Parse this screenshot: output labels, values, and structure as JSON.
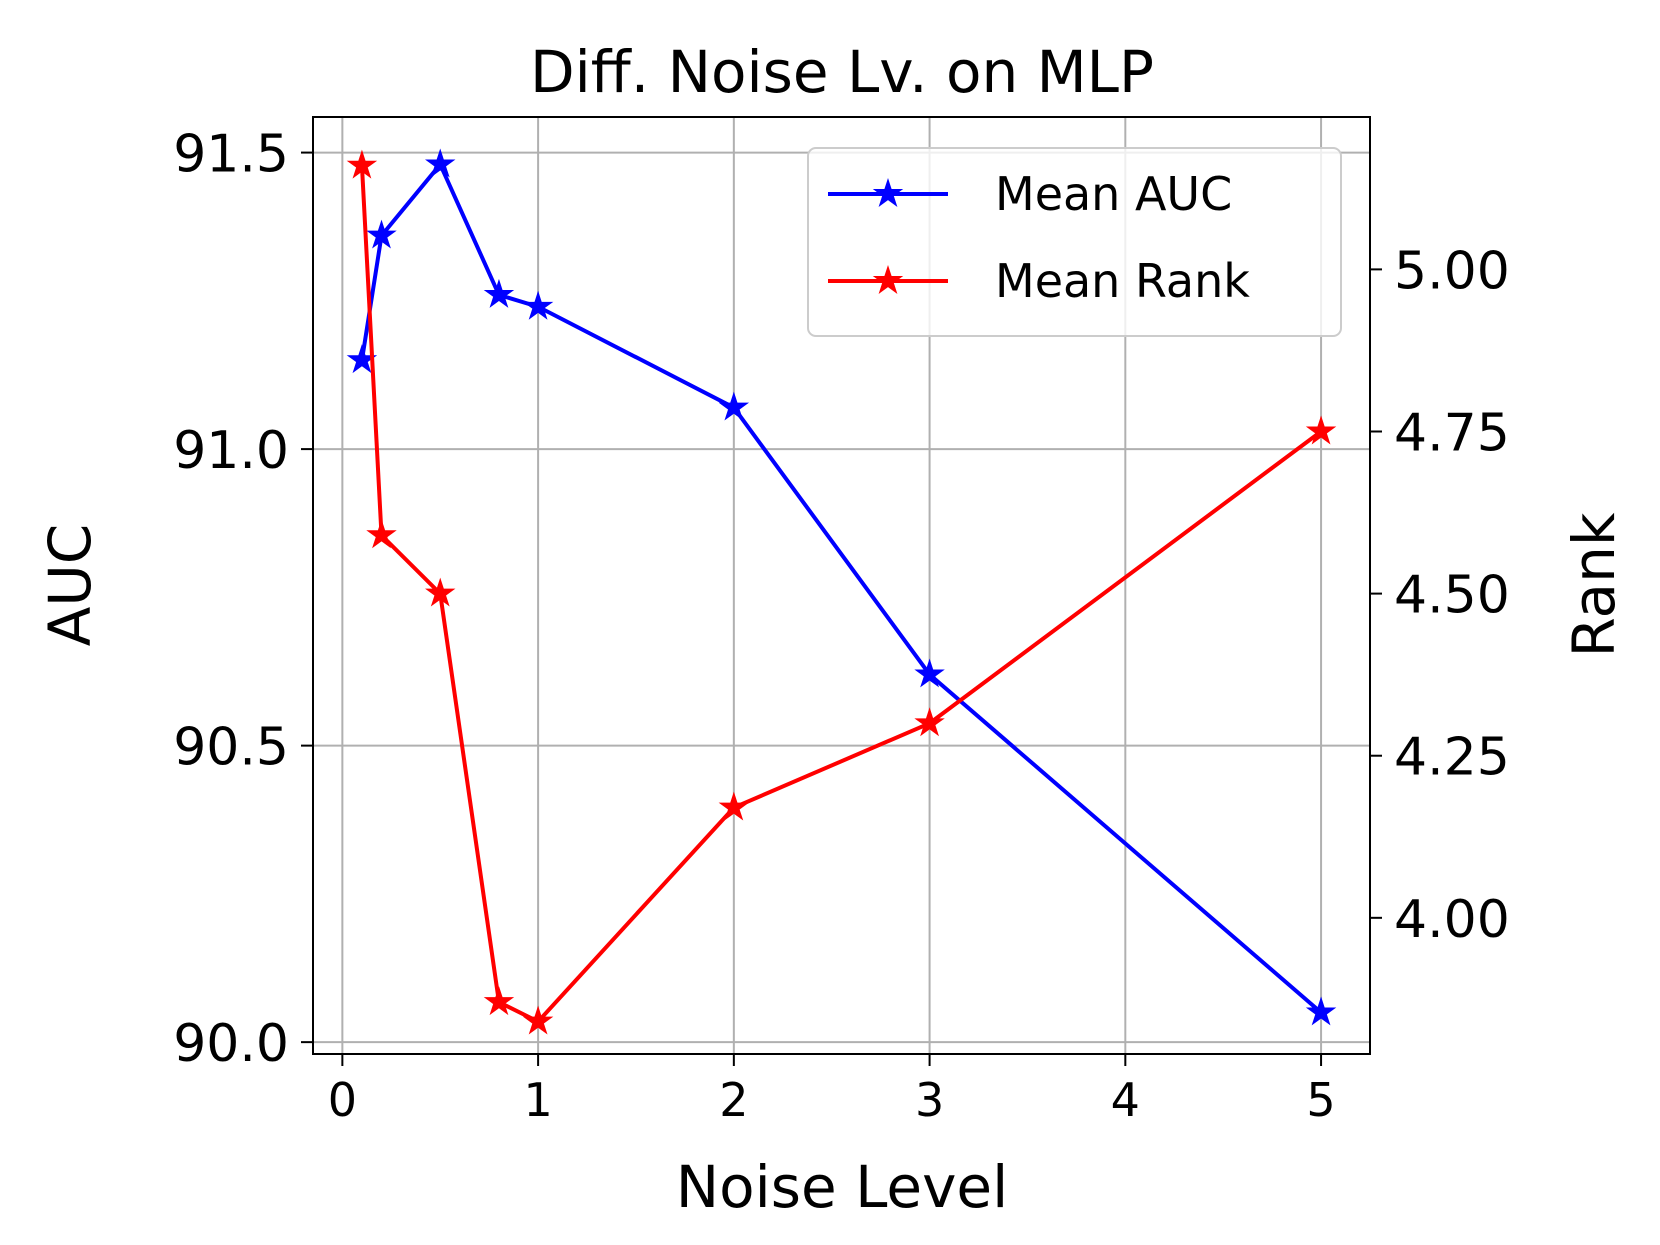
{
  "chart_data": {
    "type": "line",
    "title": "Diff. Noise Lv. on MLP",
    "xlabel": "Noise Level",
    "ylabel_left": "AUC",
    "ylabel_right": "Rank",
    "xlim": [
      -0.15,
      5.25
    ],
    "ylim_left": [
      89.98,
      91.56
    ],
    "ylim_right": [
      3.79,
      5.235
    ],
    "x_ticks": [
      0,
      1,
      2,
      3,
      4,
      5
    ],
    "x_tick_labels": [
      "0",
      "1",
      "2",
      "3",
      "4",
      "5"
    ],
    "y_left_ticks": [
      90.0,
      90.5,
      91.0,
      91.5
    ],
    "y_left_tick_labels": [
      "90.0",
      "90.5",
      "91.0",
      "91.5"
    ],
    "y_right_ticks": [
      4.0,
      4.25,
      4.5,
      4.75,
      5.0
    ],
    "y_right_tick_labels": [
      "4.00",
      "4.25",
      "4.50",
      "4.75",
      "5.00"
    ],
    "grid": true,
    "legend_position": "top-right",
    "series": [
      {
        "name": "Mean AUC",
        "axis": "left",
        "color": "#0000ff",
        "marker": "star",
        "x": [
          0.1,
          0.2,
          0.5,
          0.8,
          1,
          2,
          3,
          5
        ],
        "values": [
          91.15,
          91.36,
          91.48,
          91.26,
          91.24,
          91.07,
          90.62,
          90.05
        ]
      },
      {
        "name": "Mean Rank",
        "axis": "right",
        "color": "#ff0000",
        "marker": "star",
        "x": [
          0.1,
          0.2,
          0.5,
          0.8,
          1,
          2,
          3,
          5
        ],
        "values": [
          5.16,
          4.59,
          4.5,
          3.87,
          3.84,
          4.17,
          4.3,
          4.75
        ]
      }
    ]
  }
}
